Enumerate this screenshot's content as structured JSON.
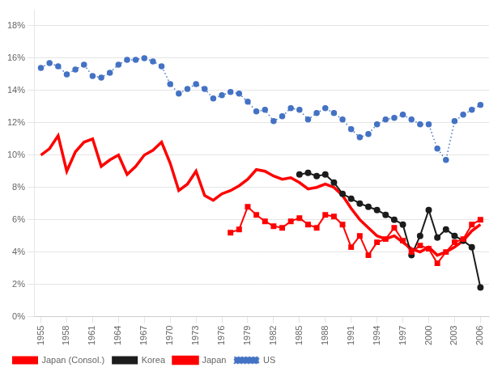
{
  "chart_data": {
    "type": "line",
    "series": [
      {
        "name": "US",
        "color": "#4472C4",
        "marker": "circle",
        "line_style": "dotted",
        "x": [
          1955,
          1956,
          1957,
          1958,
          1959,
          1960,
          1961,
          1962,
          1963,
          1964,
          1965,
          1966,
          1967,
          1968,
          1969,
          1970,
          1971,
          1972,
          1973,
          1974,
          1975,
          1976,
          1977,
          1978,
          1979,
          1980,
          1981,
          1982,
          1983,
          1984,
          1985,
          1986,
          1987,
          1988,
          1989,
          1990,
          1991,
          1992,
          1993,
          1994,
          1995,
          1996,
          1997,
          1998,
          1999,
          2000,
          2001,
          2002,
          2003,
          2004,
          2005,
          2006
        ],
        "values": [
          0.154,
          0.157,
          0.155,
          0.15,
          0.153,
          0.156,
          0.149,
          0.148,
          0.151,
          0.156,
          0.159,
          0.159,
          0.16,
          0.158,
          0.155,
          0.144,
          0.138,
          0.141,
          0.144,
          0.141,
          0.135,
          0.137,
          0.139,
          0.138,
          0.133,
          0.127,
          0.128,
          0.121,
          0.124,
          0.129,
          0.128,
          0.122,
          0.126,
          0.129,
          0.126,
          0.122,
          0.116,
          0.111,
          0.113,
          0.119,
          0.122,
          0.123,
          0.125,
          0.122,
          0.119,
          0.119,
          0.104,
          0.097,
          0.121,
          0.125,
          0.128,
          0.131
        ]
      },
      {
        "name": "Japan",
        "color": "#FF0000",
        "marker": "none",
        "line_style": "solid",
        "x": [
          1955,
          1956,
          1957,
          1958,
          1959,
          1960,
          1961,
          1962,
          1963,
          1964,
          1965,
          1966,
          1967,
          1968,
          1969,
          1970,
          1971,
          1972,
          1973,
          1974,
          1975,
          1976,
          1977,
          1978,
          1979,
          1980,
          1981,
          1982,
          1983,
          1984,
          1985,
          1986,
          1987,
          1988,
          1989,
          1990,
          1991,
          1992,
          1993,
          1994,
          1995,
          1996,
          1997,
          1998,
          1999,
          2000,
          2001,
          2002,
          2003,
          2004,
          2005,
          2006
        ],
        "values": [
          0.1,
          0.104,
          0.112,
          0.09,
          0.102,
          0.108,
          0.11,
          0.093,
          0.097,
          0.1,
          0.088,
          0.093,
          0.1,
          0.103,
          0.108,
          0.095,
          0.078,
          0.082,
          0.09,
          0.075,
          0.072,
          0.076,
          0.078,
          0.081,
          0.085,
          0.091,
          0.09,
          0.087,
          0.085,
          0.086,
          0.083,
          0.079,
          0.08,
          0.082,
          0.08,
          0.075,
          0.067,
          0.06,
          0.055,
          0.05,
          0.048,
          0.05,
          0.046,
          0.042,
          0.04,
          0.043,
          0.038,
          0.04,
          0.043,
          0.047,
          0.053,
          0.057
        ]
      },
      {
        "name": "Korea",
        "color": "#1C1C1C",
        "marker": "circle",
        "line_style": "solid",
        "x": [
          1985,
          1986,
          1987,
          1988,
          1989,
          1990,
          1991,
          1992,
          1993,
          1994,
          1995,
          1996,
          1997,
          1998,
          1999,
          2000,
          2001,
          2002,
          2003,
          2004,
          2005,
          2006
        ],
        "values": [
          0.088,
          0.089,
          0.087,
          0.088,
          0.083,
          0.076,
          0.073,
          0.07,
          0.068,
          0.066,
          0.063,
          0.06,
          0.057,
          0.038,
          0.05,
          0.066,
          0.049,
          0.054,
          0.05,
          0.047,
          0.043,
          0.018
        ]
      },
      {
        "name": "Japan (Consol.)",
        "color": "#FF0000",
        "marker": "square",
        "line_style": "solid",
        "x": [
          1977,
          1978,
          1979,
          1980,
          1981,
          1982,
          1983,
          1984,
          1985,
          1986,
          1987,
          1988,
          1989,
          1990,
          1991,
          1992,
          1993,
          1994,
          1995,
          1996,
          1997,
          1998,
          1999,
          2000,
          2001,
          2002,
          2003,
          2004,
          2005,
          2006
        ],
        "values": [
          0.052,
          0.054,
          0.068,
          0.063,
          0.059,
          0.056,
          0.055,
          0.059,
          0.061,
          0.057,
          0.055,
          0.063,
          0.062,
          0.057,
          0.043,
          0.05,
          0.038,
          0.046,
          0.048,
          0.055,
          0.047,
          0.04,
          0.044,
          0.042,
          0.033,
          0.04,
          0.046,
          0.048,
          0.057,
          0.06
        ]
      }
    ],
    "xlim": [
      1954.2,
      2007
    ],
    "xticks": [
      1955,
      1958,
      1961,
      1964,
      1967,
      1970,
      1973,
      1976,
      1979,
      1982,
      1985,
      1988,
      1991,
      1994,
      1997,
      2000,
      2003,
      2006
    ],
    "ylim": [
      0,
      0.19
    ],
    "yticks": [
      {
        "value": 0,
        "label": "0%"
      },
      {
        "value": 0.02,
        "label": "2%"
      },
      {
        "value": 0.04,
        "label": "4%"
      },
      {
        "value": 0.06,
        "label": "6%"
      },
      {
        "value": 0.08,
        "label": "8%"
      },
      {
        "value": 0.1,
        "label": "10%"
      },
      {
        "value": 0.12,
        "label": "12%"
      },
      {
        "value": 0.14,
        "label": "14%"
      },
      {
        "value": 0.16,
        "label": "16%"
      },
      {
        "value": 0.18,
        "label": "18%"
      }
    ],
    "grid": "y",
    "legend": "lower left"
  }
}
